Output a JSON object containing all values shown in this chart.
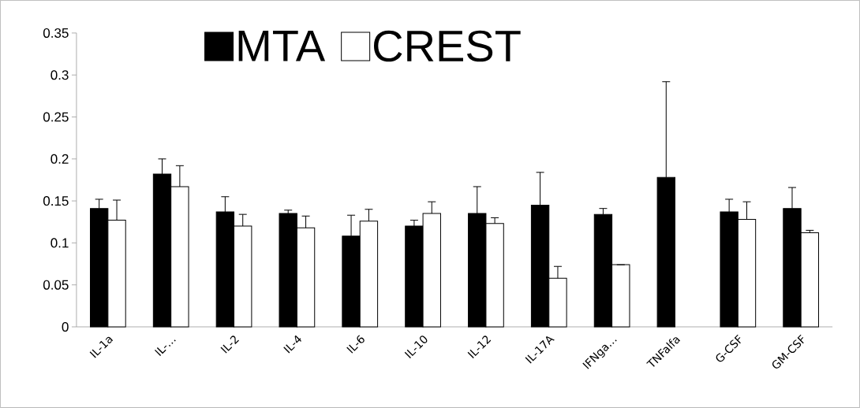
{
  "chart_data": {
    "type": "bar",
    "categories": [
      "IL-1a",
      "IL-…",
      "IL-2",
      "IL-4",
      "IL-6",
      "IL-10",
      "IL-12",
      "IL-17A",
      "IFNga…",
      "TNFalfa",
      "G-CSF",
      "GM-CSF"
    ],
    "series": [
      {
        "name": "MTA",
        "color": "#000000",
        "values": [
          0.141,
          0.182,
          0.137,
          0.135,
          0.108,
          0.12,
          0.135,
          0.145,
          0.134,
          0.178,
          0.137,
          0.141
        ],
        "errors": [
          [
            0.141,
            0.152
          ],
          [
            0.182,
            0.2
          ],
          [
            0.137,
            0.155
          ],
          [
            0.135,
            0.139
          ],
          [
            0.108,
            0.133
          ],
          [
            0.12,
            0.127
          ],
          [
            0.135,
            0.167
          ],
          [
            0.145,
            0.184
          ],
          [
            0.134,
            0.141
          ],
          [
            0.178,
            0.292
          ],
          [
            0.137,
            0.152
          ],
          [
            0.141,
            0.166
          ]
        ]
      },
      {
        "name": "CREST",
        "color": "#ffffff",
        "values": [
          0.127,
          0.167,
          0.12,
          0.118,
          0.126,
          0.135,
          0.123,
          0.058,
          0.074,
          null,
          0.128,
          0.112
        ],
        "errors": [
          [
            0.127,
            0.151
          ],
          [
            0.167,
            0.192
          ],
          [
            0.12,
            0.134
          ],
          [
            0.118,
            0.132
          ],
          [
            0.126,
            0.14
          ],
          [
            0.135,
            0.149
          ],
          [
            0.123,
            0.13
          ],
          [
            0.058,
            0.072
          ],
          null,
          null,
          [
            0.128,
            0.149
          ],
          [
            0.112,
            0.115
          ]
        ]
      }
    ],
    "ylim": [
      0,
      0.35
    ],
    "yticks": [
      0,
      0.05,
      0.1,
      0.15,
      0.2,
      0.25,
      0.3,
      0.35
    ],
    "grid": false,
    "legend": "top"
  }
}
